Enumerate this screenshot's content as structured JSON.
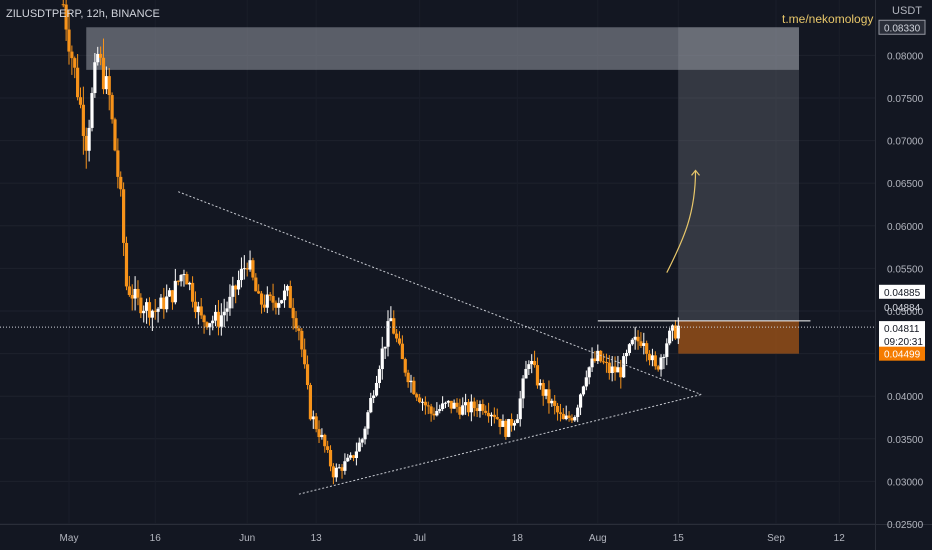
{
  "header": {
    "symbol_line": "ZILUSDTPERP, 12h, BINANCE",
    "currency": "USDT",
    "watermark": "t.me/nekomology"
  },
  "chart_data": {
    "type": "candlestick",
    "symbol": "ZILUSDTPERP",
    "timeframe": "12h",
    "exchange": "BINANCE",
    "currency": "USDT",
    "ylim": [
      0.025,
      0.0865
    ],
    "y_ticks": [
      "0.08000",
      "0.07500",
      "0.07000",
      "0.06500",
      "0.06000",
      "0.05500",
      "0.05000",
      "0.04500",
      "0.04000",
      "0.03500",
      "0.03000",
      "0.02500"
    ],
    "x_ticks": [
      {
        "label": "May",
        "date": "2021-05-01"
      },
      {
        "label": "16",
        "date": "2021-05-16"
      },
      {
        "label": "Jun",
        "date": "2021-06-01"
      },
      {
        "label": "13",
        "date": "2021-06-13"
      },
      {
        "label": "Jul",
        "date": "2021-07-01"
      },
      {
        "label": "18",
        "date": "2021-07-18"
      },
      {
        "label": "Aug",
        "date": "2021-08-01"
      },
      {
        "label": "15",
        "date": "2021-08-15"
      },
      {
        "label": "Sep",
        "date": "2021-09-01"
      },
      {
        "label": "12",
        "date": "2021-09-12"
      }
    ],
    "price_labels": [
      {
        "text": "0.08330",
        "value": 0.0833,
        "style": "box"
      },
      {
        "text": "0.04885",
        "value": 0.04885,
        "style": "white"
      },
      {
        "text": "0.04884",
        "value": 0.04884,
        "style": "plain"
      },
      {
        "text": "0.04811",
        "value": 0.04811,
        "style": "current"
      },
      {
        "text": "09:20:31",
        "value": 0.04811,
        "style": "countdown"
      },
      {
        "text": "0.04499",
        "value": 0.04499,
        "style": "orange"
      }
    ],
    "current_price": 0.04811,
    "candles_date_range": [
      "2021-04-30",
      "2021-08-15"
    ],
    "candle_anchors": [
      [
        "2021-04-30",
        0.086
      ],
      [
        "2021-05-02",
        0.078
      ],
      [
        "2021-05-04",
        0.07
      ],
      [
        "2021-05-06",
        0.08
      ],
      [
        "2021-05-08",
        0.075
      ],
      [
        "2021-05-10",
        0.063
      ],
      [
        "2021-05-11",
        0.053
      ],
      [
        "2021-05-13",
        0.051
      ],
      [
        "2021-05-16",
        0.05
      ],
      [
        "2021-05-19",
        0.052
      ],
      [
        "2021-05-21",
        0.055
      ],
      [
        "2021-05-24",
        0.049
      ],
      [
        "2021-05-27",
        0.049
      ],
      [
        "2021-05-29",
        0.051
      ],
      [
        "2021-06-01",
        0.056
      ],
      [
        "2021-06-03",
        0.051
      ],
      [
        "2021-06-05",
        0.051
      ],
      [
        "2021-06-08",
        0.052
      ],
      [
        "2021-06-10",
        0.048
      ],
      [
        "2021-06-12",
        0.038
      ],
      [
        "2021-06-14",
        0.035
      ],
      [
        "2021-06-16",
        0.031
      ],
      [
        "2021-06-19",
        0.0325
      ],
      [
        "2021-06-21",
        0.035
      ],
      [
        "2021-06-24",
        0.044
      ],
      [
        "2021-06-26",
        0.049
      ],
      [
        "2021-06-28",
        0.044
      ],
      [
        "2021-06-30",
        0.041
      ],
      [
        "2021-07-03",
        0.038
      ],
      [
        "2021-07-06",
        0.039
      ],
      [
        "2021-07-09",
        0.0385
      ],
      [
        "2021-07-12",
        0.039
      ],
      [
        "2021-07-14",
        0.038
      ],
      [
        "2021-07-16",
        0.036
      ],
      [
        "2021-07-18",
        0.038
      ],
      [
        "2021-07-20",
        0.0445
      ],
      [
        "2021-07-22",
        0.041
      ],
      [
        "2021-07-24",
        0.039
      ],
      [
        "2021-07-26",
        0.037
      ],
      [
        "2021-07-28",
        0.038
      ],
      [
        "2021-07-30",
        0.043
      ],
      [
        "2021-08-01",
        0.0445
      ],
      [
        "2021-08-03",
        0.043
      ],
      [
        "2021-08-05",
        0.043
      ],
      [
        "2021-08-07",
        0.046
      ],
      [
        "2021-08-09",
        0.047
      ],
      [
        "2021-08-11",
        0.043
      ],
      [
        "2021-08-13",
        0.0465
      ],
      [
        "2021-08-15",
        0.0481
      ]
    ],
    "annotations": {
      "triangle_upper": [
        [
          "2021-05-20",
          0.064
        ],
        [
          "2021-08-19",
          0.0402
        ]
      ],
      "triangle_lower": [
        [
          "2021-06-10",
          0.0285
        ],
        [
          "2021-08-19",
          0.0402
        ]
      ],
      "supply_zone": {
        "from": "2021-05-04",
        "to": "2021-09-05",
        "top": 0.0833,
        "bottom": 0.0783
      },
      "target_box": {
        "from": "2021-08-15",
        "to": "2021-09-05",
        "top": 0.0833,
        "bottom": 0.04884
      },
      "entry_zone": {
        "from": "2021-08-15",
        "to": "2021-09-05",
        "top": 0.04884,
        "bottom": 0.04499
      },
      "resistance_line": {
        "from": "2021-08-01",
        "to": "2021-09-07",
        "value": 0.04884
      },
      "arrow": [
        [
          "2021-08-13",
          0.0545
        ],
        [
          "2021-08-16",
          0.0585
        ],
        [
          "2021-08-18",
          0.0615
        ],
        [
          "2021-08-18",
          0.0665
        ]
      ]
    }
  }
}
